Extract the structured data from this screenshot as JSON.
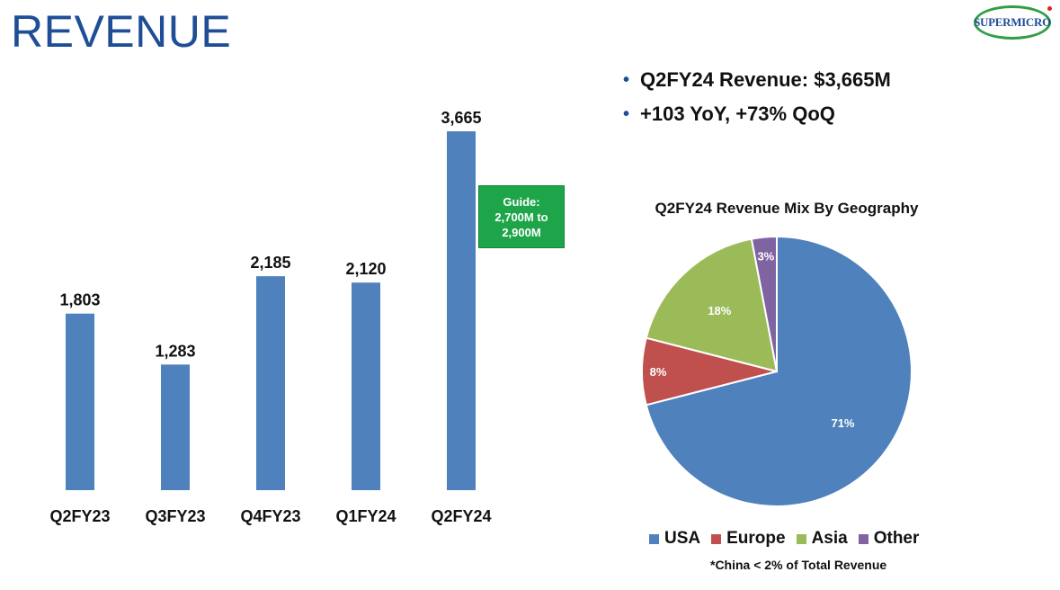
{
  "title": "REVENUE",
  "logo": {
    "text": "SUPERMICRO"
  },
  "bullets": [
    "Q2FY24 Revenue: $3,665M",
    "+103 YoY, +73% QoQ"
  ],
  "guide": {
    "line1": "Guide:",
    "line2": "2,700M to",
    "line3": "2,900M",
    "color": "#1ea54a"
  },
  "chart_data": [
    {
      "type": "bar",
      "categories": [
        "Q2FY23",
        "Q3FY23",
        "Q4FY23",
        "Q1FY24",
        "Q2FY24"
      ],
      "values": [
        1803,
        1283,
        2185,
        2120,
        3665
      ],
      "value_labels": [
        "1,803",
        "1,283",
        "2,185",
        "2,120",
        "3,665"
      ],
      "title": "",
      "xlabel": "",
      "ylabel": "",
      "ylim": [
        0,
        3900
      ],
      "grid": false,
      "color": "#4f81bd"
    },
    {
      "type": "pie",
      "title": "Q2FY24 Revenue Mix By Geography",
      "categories": [
        "USA",
        "Europe",
        "Asia",
        "Other"
      ],
      "values": [
        71,
        8,
        18,
        3
      ],
      "value_labels": [
        "71%",
        "8%",
        "18%",
        "3%"
      ],
      "colors": [
        "#4f81bd",
        "#c0504d",
        "#9bbb59",
        "#8064a2"
      ],
      "legend": "bottom",
      "footnote": "*China < 2% of Total Revenue"
    }
  ]
}
